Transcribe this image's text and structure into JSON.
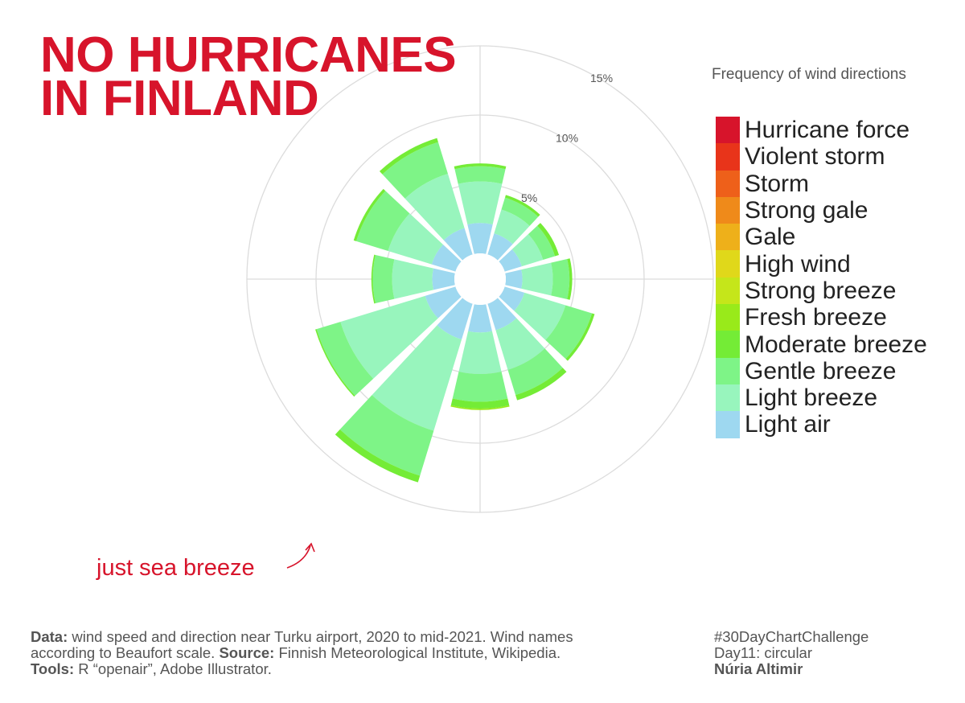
{
  "title": {
    "line1": "NO HURRICANES",
    "line2": "IN FINLAND"
  },
  "annotation": "just sea breeze",
  "chart_data": {
    "type": "polar-stacked-bar",
    "title": "NO HURRICANES IN FINLAND",
    "radial_axis_label": "Frequency of wind directions",
    "radial_ticks": [
      "5%",
      "10%",
      "15%"
    ],
    "radial_tick_values": [
      5,
      10,
      15
    ],
    "grid": true,
    "legend_position": "right",
    "directions_deg": [
      0,
      30,
      60,
      90,
      120,
      150,
      180,
      210,
      240,
      270,
      300,
      330
    ],
    "categories": [
      "Light air",
      "Light breeze",
      "Gentle breeze",
      "Moderate breeze",
      "Fresh breeze",
      "Strong breeze",
      "High wind",
      "Gale",
      "Strong gale",
      "Storm",
      "Violent storm",
      "Hurricane force"
    ],
    "colors": [
      "#9ed8f0",
      "#98f5bd",
      "#7ef487",
      "#74ec36",
      "#99ea1a",
      "#c5e61a",
      "#e0d81a",
      "#eeb01a",
      "#ef8a1a",
      "#ee601a",
      "#e8341a",
      "#d7142b"
    ],
    "series": [
      {
        "name": "Light air",
        "values": [
          2.2,
          1.6,
          1.3,
          1.2,
          1.5,
          2.0,
          2.0,
          2.7,
          2.3,
          1.6,
          1.8,
          2.0
        ]
      },
      {
        "name": "Light breeze",
        "values": [
          3.0,
          1.8,
          1.6,
          2.2,
          3.1,
          3.0,
          3.0,
          6.9,
          6.4,
          2.9,
          3.3,
          4.1
        ]
      },
      {
        "name": "Gentle breeze",
        "values": [
          1.1,
          0.9,
          0.9,
          1.2,
          2.0,
          1.9,
          2.0,
          3.4,
          1.8,
          1.4,
          2.4,
          2.4
        ]
      },
      {
        "name": "Moderate breeze",
        "values": [
          0.2,
          0.2,
          0.3,
          0.2,
          0.2,
          0.4,
          0.5,
          0.5,
          0.1,
          0.1,
          0.2,
          0.3
        ]
      },
      {
        "name": "Fresh breeze",
        "values": [
          0,
          0,
          0,
          0,
          0,
          0,
          0.1,
          0,
          0,
          0,
          0,
          0
        ]
      },
      {
        "name": "Strong breeze",
        "values": [
          0,
          0,
          0,
          0,
          0,
          0,
          0,
          0,
          0,
          0,
          0,
          0
        ]
      },
      {
        "name": "High wind",
        "values": [
          0,
          0,
          0,
          0,
          0,
          0,
          0,
          0,
          0,
          0,
          0,
          0
        ]
      },
      {
        "name": "Gale",
        "values": [
          0,
          0,
          0,
          0,
          0,
          0,
          0,
          0,
          0,
          0,
          0,
          0
        ]
      },
      {
        "name": "Strong gale",
        "values": [
          0,
          0,
          0,
          0,
          0,
          0,
          0,
          0,
          0,
          0,
          0,
          0
        ]
      },
      {
        "name": "Storm",
        "values": [
          0,
          0,
          0,
          0,
          0,
          0,
          0,
          0,
          0,
          0,
          0,
          0
        ]
      },
      {
        "name": "Violent storm",
        "values": [
          0,
          0,
          0,
          0,
          0,
          0,
          0,
          0,
          0,
          0,
          0,
          0
        ]
      },
      {
        "name": "Hurricane force",
        "values": [
          0,
          0,
          0,
          0,
          0,
          0,
          0,
          0,
          0,
          0,
          0,
          0
        ]
      }
    ]
  },
  "legend": [
    {
      "label": "Hurricane force",
      "color": "#d7142b"
    },
    {
      "label": "Violent storm",
      "color": "#e8341a"
    },
    {
      "label": "Storm",
      "color": "#ee601a"
    },
    {
      "label": "Strong gale",
      "color": "#ef8a1a"
    },
    {
      "label": "Gale",
      "color": "#eeb01a"
    },
    {
      "label": "High wind",
      "color": "#e0d81a"
    },
    {
      "label": "Strong breeze",
      "color": "#c5e61a"
    },
    {
      "label": "Fresh breeze",
      "color": "#99ea1a"
    },
    {
      "label": "Moderate breeze",
      "color": "#74ec36"
    },
    {
      "label": "Gentle breeze",
      "color": "#7ef487"
    },
    {
      "label": "Light breeze",
      "color": "#98f5bd"
    },
    {
      "label": "Light air",
      "color": "#9ed8f0"
    }
  ],
  "footer": {
    "data_label": "Data:",
    "data_text": " wind speed and direction near Turku airport, 2020 to mid-2021. Wind names",
    "data_text2": "according to Beaufort scale.  ",
    "source_label": "Source:",
    "source_text": " Finnish Meteorological Institute, Wikipedia.",
    "tools_label": "Tools:",
    "tools_text": " R “openair”, Adobe Illustrator.",
    "hashtag": "#30DayChartChallenge",
    "day": "Day11: circular",
    "author": "Núria Altimir"
  }
}
